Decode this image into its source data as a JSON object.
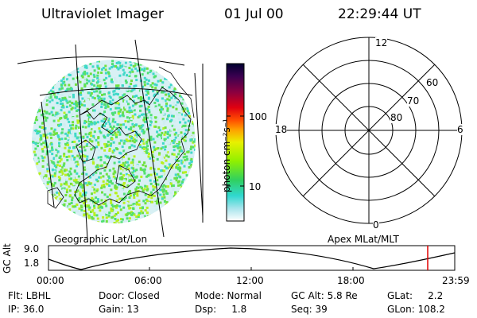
{
  "header": {
    "title": "Ultraviolet Imager",
    "date": "01 Jul 00",
    "time": "22:29:44 UT"
  },
  "colorbar": {
    "unit_label": "photon cm⁻²s⁻¹",
    "ticks": [
      "100",
      "10"
    ],
    "scale": "log",
    "colors": [
      "#000040",
      "#5a0060",
      "#c00020",
      "#ff0000",
      "#ff8000",
      "#ffd000",
      "#b0ff00",
      "#40e040",
      "#30d0c0",
      "#a0e8f0",
      "#ffffff"
    ]
  },
  "left_panel": {
    "caption": "Geographic Lat/Lon"
  },
  "right_panel": {
    "caption": "Apex MLat/MLT",
    "mlt_labels": [
      "12",
      "18",
      "6",
      "0"
    ],
    "mlat_labels": [
      "60",
      "70",
      "80"
    ]
  },
  "timeline": {
    "ylabel": "GC Alt",
    "ytick_labels": [
      "9.0",
      "1.8"
    ],
    "x_ticks": [
      "00:00",
      "06:00",
      "12:00",
      "18:00",
      "23:59"
    ],
    "marker_color": "#e00000"
  },
  "status": {
    "flt": "Flt: LBHL",
    "ip": "IP: 36.0",
    "door": "Door: Closed",
    "gain": "Gain: 13",
    "mode": "Mode: Normal",
    "dsp": "Dsp:     1.8",
    "gc_alt": "GC Alt: 5.8 Re",
    "seq": "Seq: 39",
    "glat": "GLat:     2.2",
    "glon": "GLon: 108.2"
  }
}
